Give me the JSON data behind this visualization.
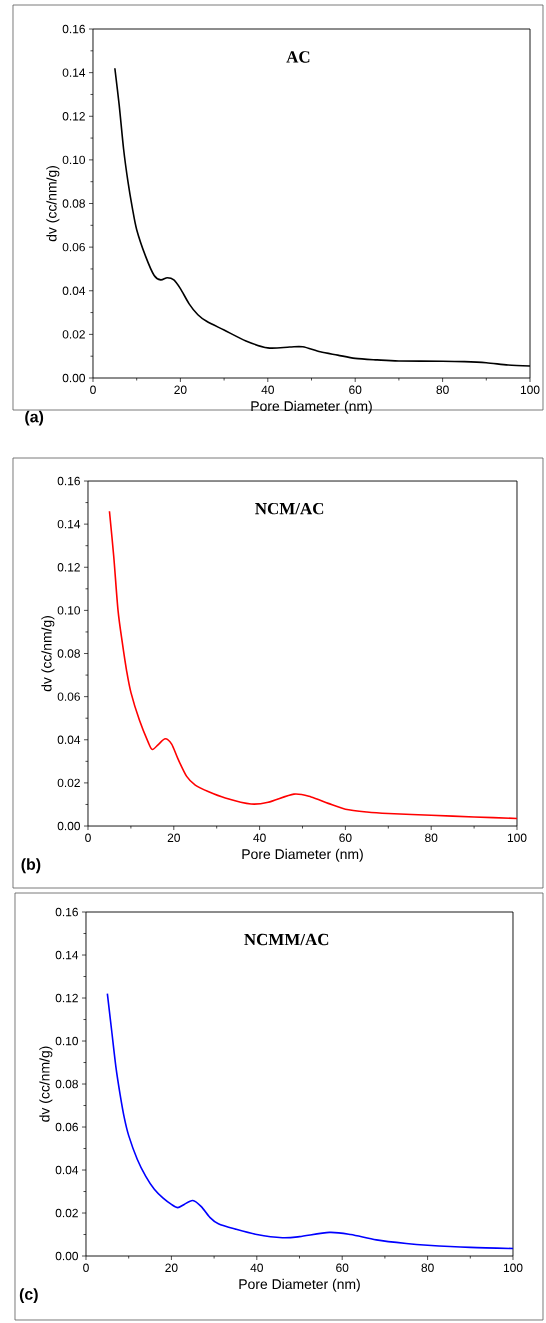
{
  "chart_data": [
    {
      "type": "line",
      "title": "AC",
      "xlabel": "Pore Diameter (nm)",
      "ylabel": "dv (cc/nm/g)",
      "annotations": [
        "(a)"
      ],
      "color": "#000000",
      "x": [
        5,
        6,
        7,
        8,
        9,
        10,
        12,
        14,
        15.5,
        17,
        18.5,
        20,
        22,
        24,
        26,
        30,
        35,
        40,
        45,
        48,
        52,
        56,
        60,
        65,
        70,
        80,
        85,
        90,
        95,
        100
      ],
      "values": [
        0.142,
        0.125,
        0.105,
        0.09,
        0.078,
        0.068,
        0.056,
        0.047,
        0.045,
        0.046,
        0.045,
        0.041,
        0.034,
        0.029,
        0.026,
        0.022,
        0.017,
        0.0138,
        0.0142,
        0.0143,
        0.012,
        0.0105,
        0.009,
        0.0083,
        0.0078,
        0.0077,
        0.0075,
        0.007,
        0.006,
        0.0055
      ],
      "xlim": [
        0,
        100
      ],
      "xticks": [
        0,
        20,
        40,
        60,
        80,
        100
      ],
      "ylim": [
        0,
        0.16
      ],
      "yticks": [
        {
          "value": 0,
          "label": "0.00"
        },
        {
          "value": 0.02,
          "label": "0.02"
        },
        {
          "value": 0.04,
          "label": "0.04"
        },
        {
          "value": 0.06,
          "label": "0.06"
        },
        {
          "value": 0.08,
          "label": "0.08"
        },
        {
          "value": 0.1,
          "label": "0.10"
        },
        {
          "value": 0.12,
          "label": "0.12"
        },
        {
          "value": 0.14,
          "label": "0.14"
        },
        {
          "value": 0.16,
          "label": "0.16"
        }
      ]
    },
    {
      "type": "line",
      "title": "NCM/AC",
      "xlabel": "Pore Diameter (nm)",
      "ylabel": "dv (cc/nm/g)",
      "annotations": [
        "(b)"
      ],
      "color": "#ff0000",
      "x": [
        5,
        6,
        7,
        8,
        9,
        10,
        12,
        14,
        15,
        16.5,
        18,
        19.5,
        21,
        23,
        25,
        28,
        32,
        38,
        42,
        48,
        52,
        56,
        60,
        65,
        70,
        80,
        90,
        100
      ],
      "values": [
        0.146,
        0.125,
        0.1,
        0.085,
        0.072,
        0.062,
        0.049,
        0.039,
        0.0355,
        0.038,
        0.0405,
        0.038,
        0.031,
        0.023,
        0.019,
        0.016,
        0.013,
        0.0102,
        0.011,
        0.0148,
        0.0135,
        0.0105,
        0.0078,
        0.0065,
        0.0058,
        0.005,
        0.0042,
        0.0035
      ],
      "xlim": [
        0,
        100
      ],
      "xticks": [
        0,
        20,
        40,
        60,
        80,
        100
      ],
      "ylim": [
        0,
        0.16
      ],
      "yticks": [
        {
          "value": 0,
          "label": "0.00"
        },
        {
          "value": 0.02,
          "label": "0.02"
        },
        {
          "value": 0.04,
          "label": "0.04"
        },
        {
          "value": 0.06,
          "label": "0.06"
        },
        {
          "value": 0.08,
          "label": "0.08"
        },
        {
          "value": 0.1,
          "label": "0.10"
        },
        {
          "value": 0.12,
          "label": "0.12"
        },
        {
          "value": 0.14,
          "label": "0.14"
        },
        {
          "value": 0.16,
          "label": "0.16"
        }
      ]
    },
    {
      "type": "line",
      "title": "NCMM/AC",
      "xlabel": "Pore Diameter (nm)",
      "ylabel": "dv (cc/nm/g)",
      "annotations": [
        "(c)"
      ],
      "color": "#0000ff",
      "x": [
        5,
        6,
        7,
        8,
        9,
        10,
        12,
        14,
        16,
        18,
        20,
        21.5,
        23,
        25,
        27,
        29,
        31,
        35,
        40,
        46,
        50,
        57,
        62,
        68,
        75,
        80,
        90,
        100
      ],
      "values": [
        0.122,
        0.105,
        0.088,
        0.075,
        0.064,
        0.056,
        0.045,
        0.037,
        0.031,
        0.027,
        0.024,
        0.0225,
        0.024,
        0.0258,
        0.023,
        0.018,
        0.015,
        0.0125,
        0.01,
        0.0085,
        0.009,
        0.011,
        0.01,
        0.0075,
        0.0058,
        0.005,
        0.004,
        0.0035
      ],
      "xlim": [
        0,
        100
      ],
      "xticks": [
        0,
        20,
        40,
        60,
        80,
        100
      ],
      "ylim": [
        0,
        0.16
      ],
      "yticks": [
        {
          "value": 0,
          "label": "0.00"
        },
        {
          "value": 0.02,
          "label": "0.02"
        },
        {
          "value": 0.04,
          "label": "0.04"
        },
        {
          "value": 0.06,
          "label": "0.06"
        },
        {
          "value": 0.08,
          "label": "0.08"
        },
        {
          "value": 0.1,
          "label": "0.10"
        },
        {
          "value": 0.12,
          "label": "0.12"
        },
        {
          "value": 0.14,
          "label": "0.14"
        },
        {
          "value": 0.16,
          "label": "0.16"
        }
      ]
    }
  ]
}
